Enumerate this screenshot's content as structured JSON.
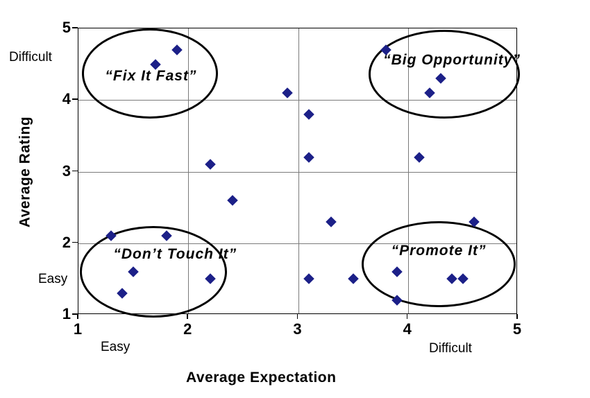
{
  "chart_data": {
    "type": "scatter",
    "title": "",
    "xlabel": "Average Expectation",
    "ylabel": "Average Rating",
    "xlim": [
      1,
      5
    ],
    "ylim": [
      1,
      5
    ],
    "x_ticks": [
      "1",
      "2",
      "3",
      "4",
      "5"
    ],
    "y_ticks": [
      "1",
      "2",
      "3",
      "4",
      "5"
    ],
    "grid": true,
    "legend": "none",
    "marker": "diamond",
    "marker_color": "#1c2088",
    "axis_annotations": {
      "y_top": "Difficult",
      "y_bottom": "Easy",
      "x_left": "Easy",
      "x_right": "Difficult"
    },
    "points": [
      [
        1.7,
        4.5
      ],
      [
        1.9,
        4.7
      ],
      [
        2.9,
        4.1
      ],
      [
        3.1,
        3.8
      ],
      [
        3.1,
        3.2
      ],
      [
        2.2,
        3.1
      ],
      [
        2.4,
        2.6
      ],
      [
        3.3,
        2.3
      ],
      [
        1.3,
        2.1
      ],
      [
        1.8,
        2.1
      ],
      [
        1.5,
        1.6
      ],
      [
        1.4,
        1.3
      ],
      [
        2.2,
        1.5
      ],
      [
        3.1,
        1.5
      ],
      [
        3.5,
        1.5
      ],
      [
        3.9,
        1.6
      ],
      [
        3.9,
        1.2
      ],
      [
        4.4,
        1.5
      ],
      [
        4.5,
        1.5
      ],
      [
        4.6,
        2.3
      ],
      [
        4.1,
        3.2
      ],
      [
        4.2,
        4.1
      ],
      [
        4.3,
        4.3
      ],
      [
        3.8,
        4.7
      ]
    ],
    "annotations": [
      {
        "id": "fix-it-fast",
        "label": "“Fix It Fast”",
        "ellipse": {
          "cx": 1.65,
          "cy": 4.37,
          "rx": 0.62,
          "ry": 0.63
        },
        "label_pos": {
          "x": 1.66,
          "y": 4.33
        }
      },
      {
        "id": "big-opportunity",
        "label": "“Big Opportunity”",
        "ellipse": {
          "cx": 4.33,
          "cy": 4.36,
          "rx": 0.69,
          "ry": 0.62
        },
        "label_pos": {
          "x": 4.4,
          "y": 4.55
        }
      },
      {
        "id": "dont-touch-it",
        "label": "“Don’t Touch It”",
        "ellipse": {
          "cx": 1.68,
          "cy": 1.6,
          "rx": 0.67,
          "ry": 0.64
        },
        "label_pos": {
          "x": 1.88,
          "y": 1.84
        }
      },
      {
        "id": "promote-it",
        "label": "“Promote It”",
        "ellipse": {
          "cx": 4.28,
          "cy": 1.71,
          "rx": 0.7,
          "ry": 0.6
        },
        "label_pos": {
          "x": 4.28,
          "y": 1.89
        }
      }
    ]
  }
}
